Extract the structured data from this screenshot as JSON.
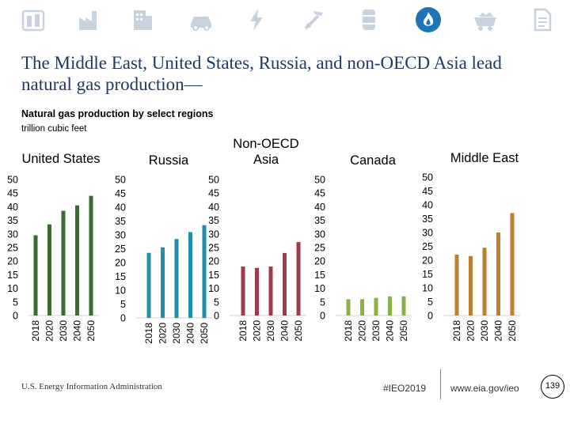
{
  "header": {
    "icons": [
      {
        "name": "oil-gas-icon",
        "color": "#c8d1de"
      },
      {
        "name": "factory-icon",
        "color": "#c8d1de"
      },
      {
        "name": "building-icon",
        "color": "#c8d1de"
      },
      {
        "name": "car-icon",
        "color": "#c8d1de"
      },
      {
        "name": "lightning-icon",
        "color": "#c8d1de"
      },
      {
        "name": "tools-icon",
        "color": "#c8d1de"
      },
      {
        "name": "barrel-icon",
        "color": "#c8d1de"
      },
      {
        "name": "flame-icon",
        "color": "#1f73b7"
      },
      {
        "name": "coal-cart-icon",
        "color": "#c8d1de"
      },
      {
        "name": "document-icon",
        "color": "#c8d1de"
      }
    ]
  },
  "slide": {
    "title": "The Middle East, United States, Russia, and non-OECD Asia lead natural gas production—",
    "subtitle": "Natural gas production by select regions",
    "units": "trillion cubic feet"
  },
  "footer": {
    "source": "U.S. Energy Information Administration",
    "hashtag": "#IEO2019",
    "url": "www.eia.gov/ieo",
    "page": "139"
  },
  "chart_data": [
    {
      "type": "bar",
      "title": "United States",
      "categories": [
        "2018",
        "2020",
        "2030",
        "2040",
        "2050"
      ],
      "values": [
        29.5,
        33.5,
        38.5,
        40.5,
        44
      ],
      "ylim": [
        0,
        50
      ],
      "yticks": [
        0,
        5,
        10,
        15,
        20,
        25,
        30,
        35,
        40,
        45,
        50
      ],
      "color": "#3a6b30"
    },
    {
      "type": "bar",
      "title": "Russia",
      "categories": [
        "2018",
        "2020",
        "2030",
        "2040",
        "2050"
      ],
      "values": [
        23.5,
        25.5,
        28.5,
        31,
        33.5
      ],
      "ylim": [
        0,
        50
      ],
      "yticks": [
        0,
        5,
        10,
        15,
        20,
        25,
        30,
        35,
        40,
        45,
        50
      ],
      "color": "#1f8fab"
    },
    {
      "type": "bar",
      "title": "Non-OECD\nAsia",
      "categories": [
        "2018",
        "2020",
        "2030",
        "2040",
        "2050"
      ],
      "values": [
        18,
        17.5,
        18,
        23,
        27
      ],
      "ylim": [
        0,
        50
      ],
      "yticks": [
        0,
        5,
        10,
        15,
        20,
        25,
        30,
        35,
        40,
        45,
        50
      ],
      "color": "#a33a4b"
    },
    {
      "type": "bar",
      "title": "Canada",
      "categories": [
        "2018",
        "2020",
        "2030",
        "2040",
        "2050"
      ],
      "values": [
        6,
        6,
        6.5,
        7,
        7
      ],
      "ylim": [
        0,
        50
      ],
      "yticks": [
        0,
        5,
        10,
        15,
        20,
        25,
        30,
        35,
        40,
        45,
        50
      ],
      "color": "#8ab04a"
    },
    {
      "type": "bar",
      "title": "Middle East",
      "categories": [
        "2018",
        "2020",
        "2030",
        "2040",
        "2050"
      ],
      "values": [
        22,
        21.5,
        24.5,
        30,
        37
      ],
      "ylim": [
        0,
        50
      ],
      "yticks": [
        0,
        5,
        10,
        15,
        20,
        25,
        30,
        35,
        40,
        45,
        50
      ],
      "color": "#c07f2e"
    }
  ]
}
